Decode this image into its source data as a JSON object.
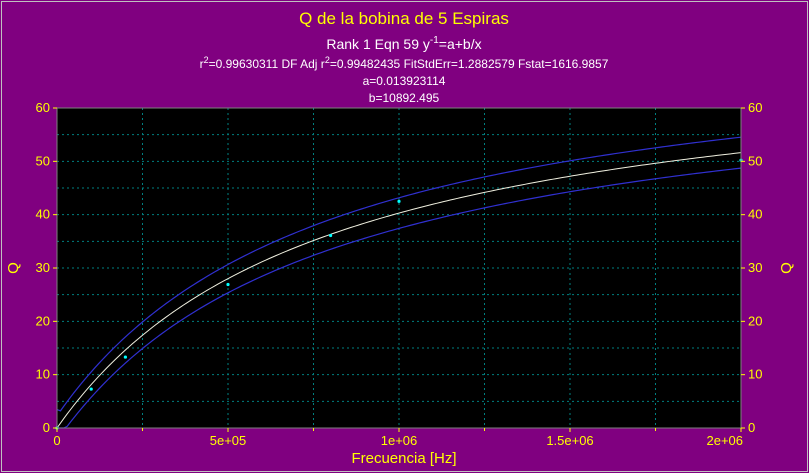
{
  "chart_data": {
    "type": "scatter",
    "title": "Q de la bobina de 5 Espiras",
    "subtitle": {
      "rank_line": "Rank 1  Eqn 59  y",
      "rank_sup": "-1",
      "rank_tail": "=a+b/x",
      "stats_r2_label": "r",
      "stats_r2_sup": "2",
      "stats_r2_value": "=0.99630311  DF Adj r",
      "stats_adj_sup": "2",
      "stats_adj_value": "=0.99482435  FitStdErr=1.2882579  Fstat=1616.9857",
      "param_a": "a=0.013923114",
      "param_b": "b=10892.495"
    },
    "xlabel": "Frecuencia [Hz]",
    "ylabel": "Q",
    "ylabel_right": "Q",
    "xlim": [
      0,
      2000000
    ],
    "ylim": [
      0,
      60
    ],
    "x_ticks": [
      {
        "value": 0,
        "label": "0"
      },
      {
        "value": 500000,
        "label": "5e+05"
      },
      {
        "value": 1000000,
        "label": "1e+06"
      },
      {
        "value": 1500000,
        "label": "1.5e+06"
      },
      {
        "value": 2000000,
        "label": "2e+06"
      }
    ],
    "y_ticks": [
      0,
      10,
      20,
      30,
      40,
      50,
      60
    ],
    "grid": true,
    "points": {
      "x": [
        0,
        100000,
        200000,
        500000,
        800000,
        1000000,
        2000000
      ],
      "y": [
        0,
        7.3,
        13.3,
        26.9,
        36.1,
        42.5,
        50.2
      ]
    },
    "fit": {
      "equation": "y^-1 = a + b/x",
      "a": 0.013923114,
      "b": 10892.495
    },
    "colors": {
      "background": "#800080",
      "plot_area": "#000000",
      "grid": "#008080",
      "fit_curve": "#f0f0e0",
      "confidence_band": "#3030d0",
      "points": "#00ffff",
      "text_title": "#ffff00",
      "text_stats": "#ffffff"
    }
  }
}
